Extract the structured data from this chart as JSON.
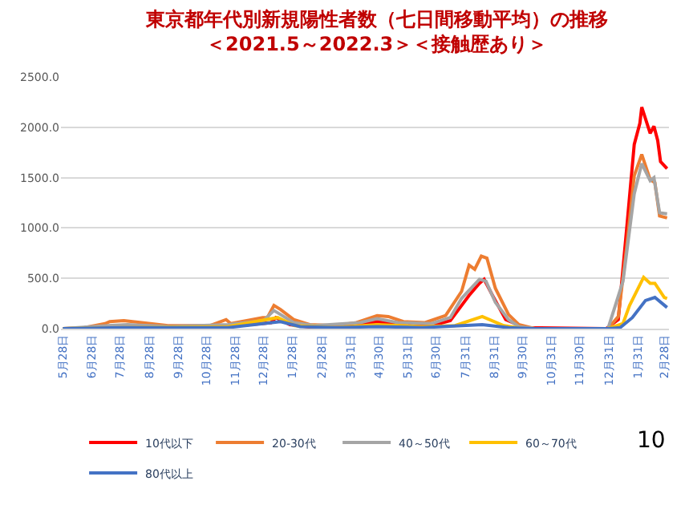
{
  "chart_data": {
    "type": "line",
    "title": "東京都年代別新規陽性者数（七日間移動平均）の推移",
    "subtitle": "＜2021.5～2022.3＞＜接触歴あり＞",
    "xlim": [
      "2020-05-26",
      "2022-03-05"
    ],
    "xticks": [
      {
        "value": "2020-05-28",
        "label": "5月28日"
      },
      {
        "value": "2020-06-28",
        "label": "6月28日"
      },
      {
        "value": "2020-07-28",
        "label": "7月28日"
      },
      {
        "value": "2020-08-28",
        "label": "8月28日"
      },
      {
        "value": "2020-09-28",
        "label": "9月28日"
      },
      {
        "value": "2020-10-28",
        "label": "10月28日"
      },
      {
        "value": "2020-11-28",
        "label": "11月28日"
      },
      {
        "value": "2020-12-28",
        "label": "12月28日"
      },
      {
        "value": "2021-01-28",
        "label": "1月28日"
      },
      {
        "value": "2021-02-28",
        "label": "2月28日"
      },
      {
        "value": "2021-03-31",
        "label": "3月31日"
      },
      {
        "value": "2021-04-30",
        "label": "4月30日"
      },
      {
        "value": "2021-05-31",
        "label": "5月31日"
      },
      {
        "value": "2021-06-30",
        "label": "6月30日"
      },
      {
        "value": "2021-07-31",
        "label": "7月31日"
      },
      {
        "value": "2021-08-31",
        "label": "8月31日"
      },
      {
        "value": "2021-09-30",
        "label": "9月30日"
      },
      {
        "value": "2021-10-31",
        "label": "10月31日"
      },
      {
        "value": "2021-11-30",
        "label": "11月30日"
      },
      {
        "value": "2021-12-31",
        "label": "12月31日"
      },
      {
        "value": "2022-01-31",
        "label": "1月31日"
      },
      {
        "value": "2022-02-28",
        "label": "2月28日"
      }
    ],
    "ylim": [
      0,
      2500
    ],
    "yticks": [
      {
        "value": 0,
        "label": "0.0"
      },
      {
        "value": 500,
        "label": "500.0"
      },
      {
        "value": 1000,
        "label": "1000.0"
      },
      {
        "value": 1500,
        "label": "1500.0"
      },
      {
        "value": 2000,
        "label": "2000.0"
      },
      {
        "value": 2500,
        "label": "2500.0"
      }
    ],
    "grid": "y",
    "legend": "bottom",
    "marker": "none",
    "line_style": "solid",
    "annotations": [
      "10"
    ],
    "series": [
      {
        "name": "10代以下",
        "color": "#ff0000",
        "x": [
          "2020-11-20",
          "2021-01-05",
          "2021-01-10",
          "2021-01-25",
          "2021-02-20",
          "2021-04-10",
          "2021-04-28",
          "2021-05-20",
          "2021-06-25",
          "2021-07-15",
          "2021-07-27",
          "2021-08-04",
          "2021-08-15",
          "2021-08-20",
          "2021-08-29",
          "2021-09-12",
          "2021-10-02",
          "2021-12-28",
          "2022-01-10",
          "2022-01-19",
          "2022-01-27",
          "2022-02-02",
          "2022-02-04",
          "2022-02-13",
          "2022-02-17",
          "2022-02-21",
          "2022-02-24",
          "2022-03-03"
        ],
        "values": [
          20,
          60,
          110,
          40,
          10,
          40,
          70,
          40,
          30,
          80,
          230,
          330,
          450,
          490,
          330,
          90,
          10,
          0,
          90,
          1000,
          1830,
          2040,
          2200,
          1940,
          2010,
          1870,
          1660,
          1590
        ]
      },
      {
        "name": "20-30代",
        "color": "#ed7d31",
        "x": [
          "2020-05-28",
          "2020-06-20",
          "2020-07-12",
          "2020-07-17",
          "2020-08-01",
          "2020-08-20",
          "2020-09-17",
          "2020-11-01",
          "2020-11-18",
          "2020-11-23",
          "2020-12-27",
          "2021-01-01",
          "2021-01-08",
          "2021-01-15",
          "2021-01-29",
          "2021-02-15",
          "2021-03-15",
          "2021-04-06",
          "2021-04-28",
          "2021-05-10",
          "2021-05-26",
          "2021-06-18",
          "2021-07-10",
          "2021-07-27",
          "2021-08-04",
          "2021-08-10",
          "2021-08-17",
          "2021-08-23",
          "2021-09-01",
          "2021-09-15",
          "2021-09-26",
          "2021-10-13",
          "2021-12-30",
          "2022-01-10",
          "2022-01-19",
          "2022-01-27",
          "2022-02-04",
          "2022-02-13",
          "2022-02-18",
          "2022-02-23",
          "2022-03-03"
        ],
        "values": [
          0,
          10,
          50,
          70,
          80,
          60,
          30,
          30,
          90,
          50,
          110,
          110,
          230,
          190,
          90,
          40,
          30,
          60,
          130,
          120,
          70,
          60,
          130,
          370,
          630,
          590,
          720,
          700,
          400,
          140,
          40,
          0,
          0,
          120,
          820,
          1520,
          1730,
          1480,
          1450,
          1120,
          1100
        ]
      },
      {
        "name": "40～50代",
        "color": "#a5a5a5",
        "x": [
          "2020-05-28",
          "2020-07-15",
          "2020-08-05",
          "2020-09-20",
          "2020-11-20",
          "2020-12-28",
          "2021-01-08",
          "2021-01-15",
          "2021-01-29",
          "2021-02-20",
          "2021-04-10",
          "2021-04-28",
          "2021-05-20",
          "2021-06-25",
          "2021-07-15",
          "2021-07-27",
          "2021-08-15",
          "2021-08-22",
          "2021-09-01",
          "2021-09-15",
          "2021-09-26",
          "2021-10-13",
          "2021-12-30",
          "2022-01-15",
          "2022-01-27",
          "2022-02-04",
          "2022-02-13",
          "2022-02-17",
          "2022-02-23",
          "2022-03-03"
        ],
        "values": [
          0,
          30,
          40,
          20,
          40,
          80,
          180,
          140,
          60,
          30,
          60,
          100,
          60,
          50,
          110,
          300,
          490,
          470,
          260,
          90,
          20,
          0,
          0,
          470,
          1340,
          1640,
          1470,
          1500,
          1150,
          1140
        ]
      },
      {
        "name": "60～70代",
        "color": "#ffc000",
        "x": [
          "2020-05-28",
          "2020-08-01",
          "2020-11-20",
          "2021-01-12",
          "2021-01-30",
          "2021-03-15",
          "2021-04-28",
          "2021-06-15",
          "2021-07-20",
          "2021-08-18",
          "2021-09-10",
          "2021-10-01",
          "2021-12-30",
          "2022-01-15",
          "2022-01-22",
          "2022-02-06",
          "2022-02-13",
          "2022-02-18",
          "2022-02-28",
          "2022-03-03"
        ],
        "values": [
          0,
          10,
          20,
          110,
          30,
          10,
          40,
          20,
          30,
          120,
          30,
          0,
          0,
          50,
          230,
          510,
          450,
          450,
          310,
          300
        ]
      },
      {
        "name": "80代以上",
        "color": "#4472c4",
        "x": [
          "2020-05-28",
          "2020-08-01",
          "2020-11-20",
          "2021-01-15",
          "2021-02-05",
          "2021-03-15",
          "2021-04-28",
          "2021-06-15",
          "2021-08-18",
          "2021-09-15",
          "2021-10-10",
          "2021-12-30",
          "2022-01-12",
          "2022-01-25",
          "2022-02-08",
          "2022-02-18",
          "2022-03-03"
        ],
        "values": [
          0,
          10,
          10,
          70,
          20,
          10,
          20,
          10,
          40,
          10,
          0,
          0,
          10,
          110,
          280,
          310,
          210
        ]
      }
    ]
  }
}
